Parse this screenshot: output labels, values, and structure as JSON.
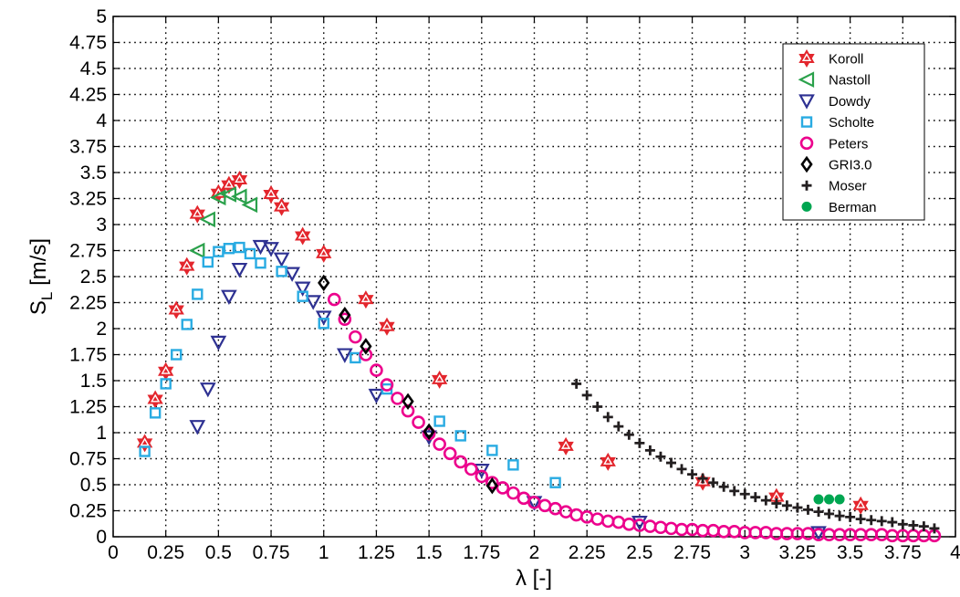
{
  "chart_data": {
    "type": "scatter",
    "xlabel": "λ [-]",
    "ylabel_main": "S",
    "ylabel_sub": "L",
    "ylabel_unit": " [m/s]",
    "xlim": [
      0,
      4
    ],
    "ylim": [
      0,
      5
    ],
    "grid": true,
    "legend_position": "top-right",
    "xticks": [
      {
        "value": 0,
        "label": "0"
      },
      {
        "value": 0.25,
        "label": "0.25"
      },
      {
        "value": 0.5,
        "label": "0.5"
      },
      {
        "value": 0.75,
        "label": "0.75"
      },
      {
        "value": 1,
        "label": "1"
      },
      {
        "value": 1.25,
        "label": "1.25"
      },
      {
        "value": 1.5,
        "label": "1.5"
      },
      {
        "value": 1.75,
        "label": "1.75"
      },
      {
        "value": 2,
        "label": "2"
      },
      {
        "value": 2.25,
        "label": "2.25"
      },
      {
        "value": 2.5,
        "label": "2.5"
      },
      {
        "value": 2.75,
        "label": "2.75"
      },
      {
        "value": 3,
        "label": "3"
      },
      {
        "value": 3.25,
        "label": "3.25"
      },
      {
        "value": 3.5,
        "label": "3.5"
      },
      {
        "value": 3.75,
        "label": "3.75"
      },
      {
        "value": 4,
        "label": "4"
      }
    ],
    "yticks": [
      {
        "value": 0,
        "label": "0"
      },
      {
        "value": 0.25,
        "label": "0.25"
      },
      {
        "value": 0.5,
        "label": "0.5"
      },
      {
        "value": 0.75,
        "label": "0.75"
      },
      {
        "value": 1,
        "label": "1"
      },
      {
        "value": 1.25,
        "label": "1.25"
      },
      {
        "value": 1.5,
        "label": "1.5"
      },
      {
        "value": 1.75,
        "label": "1.75"
      },
      {
        "value": 2,
        "label": "2"
      },
      {
        "value": 2.25,
        "label": "2.25"
      },
      {
        "value": 2.5,
        "label": "2.5"
      },
      {
        "value": 2.75,
        "label": "2.75"
      },
      {
        "value": 3,
        "label": "3"
      },
      {
        "value": 3.25,
        "label": "3.25"
      },
      {
        "value": 3.5,
        "label": "3.5"
      },
      {
        "value": 3.75,
        "label": "3.75"
      },
      {
        "value": 4,
        "label": "4"
      },
      {
        "value": 4.25,
        "label": "4.25"
      },
      {
        "value": 4.5,
        "label": "4.5"
      },
      {
        "value": 4.75,
        "label": "4.75"
      },
      {
        "value": 5,
        "label": "5"
      }
    ],
    "series": [
      {
        "name": "Koroll",
        "marker": "hexagram",
        "color": "#e3262d",
        "x": [
          0.15,
          0.2,
          0.25,
          0.3,
          0.35,
          0.4,
          0.5,
          0.55,
          0.6,
          0.75,
          0.8,
          0.9,
          1.0,
          1.2,
          1.3,
          1.55,
          2.15,
          2.35,
          2.8,
          3.15,
          3.55
        ],
        "y": [
          0.9,
          1.32,
          1.59,
          2.18,
          2.6,
          3.1,
          3.3,
          3.38,
          3.43,
          3.29,
          3.17,
          2.89,
          2.72,
          2.28,
          2.02,
          1.51,
          0.87,
          0.72,
          0.53,
          0.38,
          0.3
        ]
      },
      {
        "name": "Nastoll",
        "marker": "triangle-left",
        "color": "#2aa14b",
        "x": [
          0.4,
          0.45,
          0.5,
          0.55,
          0.6,
          0.65
        ],
        "y": [
          2.75,
          3.05,
          3.26,
          3.29,
          3.27,
          3.19
        ]
      },
      {
        "name": "Dowdy",
        "marker": "triangle-down",
        "color": "#2e3192",
        "x": [
          0.4,
          0.45,
          0.5,
          0.55,
          0.6,
          0.7,
          0.75,
          0.8,
          0.85,
          0.9,
          0.95,
          1.0,
          1.1,
          1.25,
          1.5,
          1.75,
          2.0,
          2.5,
          3.35
        ],
        "y": [
          1.06,
          1.42,
          1.87,
          2.31,
          2.57,
          2.79,
          2.77,
          2.67,
          2.53,
          2.39,
          2.26,
          2.11,
          1.75,
          1.36,
          0.96,
          0.64,
          0.33,
          0.14,
          0.04
        ]
      },
      {
        "name": "Scholte",
        "marker": "square",
        "color": "#29abe2",
        "x": [
          0.15,
          0.2,
          0.25,
          0.3,
          0.35,
          0.4,
          0.45,
          0.5,
          0.55,
          0.6,
          0.65,
          0.7,
          0.8,
          0.9,
          1.0,
          1.15,
          1.3,
          1.55,
          1.65,
          1.8,
          1.9,
          2.1
        ],
        "y": [
          0.82,
          1.19,
          1.47,
          1.75,
          2.04,
          2.33,
          2.64,
          2.74,
          2.77,
          2.78,
          2.72,
          2.63,
          2.55,
          2.31,
          2.05,
          1.72,
          1.42,
          1.11,
          0.97,
          0.83,
          0.69,
          0.52
        ]
      },
      {
        "name": "Peters",
        "marker": "circle-open",
        "color": "#ec008c",
        "x": [
          1.05,
          1.1,
          1.15,
          1.2,
          1.25,
          1.3,
          1.35,
          1.4,
          1.45,
          1.5,
          1.55,
          1.6,
          1.65,
          1.7,
          1.75,
          1.8,
          1.85,
          1.9,
          1.95,
          2.0,
          2.05,
          2.1,
          2.15,
          2.2,
          2.25,
          2.3,
          2.35,
          2.4,
          2.45,
          2.5,
          2.55,
          2.6,
          2.65,
          2.7,
          2.75,
          2.8,
          2.85,
          2.9,
          2.95,
          3.0,
          3.05,
          3.1,
          3.15,
          3.2,
          3.25,
          3.3,
          3.35,
          3.4,
          3.45,
          3.5,
          3.55,
          3.6,
          3.65,
          3.7,
          3.75,
          3.8,
          3.85,
          3.9
        ],
        "y": [
          2.28,
          2.09,
          1.92,
          1.75,
          1.6,
          1.46,
          1.33,
          1.21,
          1.1,
          0.99,
          0.89,
          0.8,
          0.72,
          0.65,
          0.58,
          0.52,
          0.47,
          0.42,
          0.37,
          0.33,
          0.3,
          0.27,
          0.24,
          0.21,
          0.19,
          0.17,
          0.15,
          0.14,
          0.12,
          0.11,
          0.1,
          0.09,
          0.08,
          0.07,
          0.07,
          0.06,
          0.06,
          0.05,
          0.05,
          0.04,
          0.04,
          0.04,
          0.03,
          0.03,
          0.03,
          0.03,
          0.02,
          0.02,
          0.02,
          0.02,
          0.02,
          0.02,
          0.02,
          0.01,
          0.01,
          0.01,
          0.01,
          0.01
        ]
      },
      {
        "name": "GRI3.0",
        "marker": "diamond",
        "color": "#000000",
        "x": [
          1.0,
          1.1,
          1.2,
          1.4,
          1.5,
          1.8
        ],
        "y": [
          2.44,
          2.13,
          1.83,
          1.3,
          1.01,
          0.49
        ]
      },
      {
        "name": "Moser",
        "marker": "plus",
        "color": "#231f20",
        "x": [
          2.2,
          2.25,
          2.3,
          2.35,
          2.4,
          2.45,
          2.5,
          2.55,
          2.6,
          2.65,
          2.7,
          2.75,
          2.8,
          2.85,
          2.9,
          2.95,
          3.0,
          3.05,
          3.1,
          3.15,
          3.2,
          3.25,
          3.3,
          3.35,
          3.4,
          3.45,
          3.5,
          3.55,
          3.6,
          3.65,
          3.7,
          3.75,
          3.8,
          3.85,
          3.9
        ],
        "y": [
          1.47,
          1.36,
          1.25,
          1.15,
          1.06,
          0.98,
          0.9,
          0.83,
          0.77,
          0.71,
          0.65,
          0.6,
          0.56,
          0.52,
          0.48,
          0.44,
          0.41,
          0.38,
          0.35,
          0.32,
          0.3,
          0.28,
          0.26,
          0.24,
          0.22,
          0.2,
          0.19,
          0.17,
          0.16,
          0.15,
          0.14,
          0.12,
          0.11,
          0.1,
          0.08
        ]
      },
      {
        "name": "Berman",
        "marker": "circle-filled",
        "color": "#00a651",
        "x": [
          3.35,
          3.4,
          3.45
        ],
        "y": [
          0.36,
          0.36,
          0.36
        ]
      }
    ]
  }
}
